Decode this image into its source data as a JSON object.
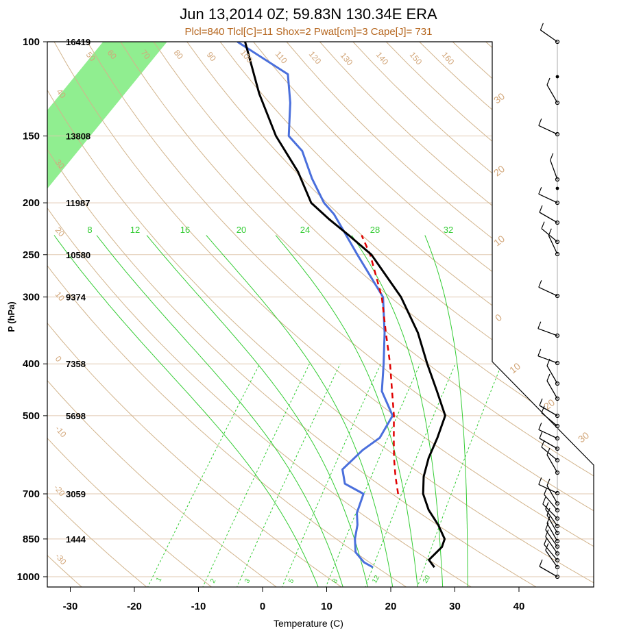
{
  "chart_data": {
    "type": "skew-t",
    "title": "Jun 13,2014 0Z; 59.83N 130.34E ERA",
    "subtitle": "Plcl=840 Tlcl[C]=11 Shox=2 Pwat[cm]=3 Cape[J]= 731",
    "xlabel": "Temperature (C)",
    "ylabel": "P (hPa)",
    "pressure_ticks": [
      "100",
      "150",
      "200",
      "250",
      "300",
      "400",
      "500",
      "700",
      "850",
      "1000"
    ],
    "heights": [
      "16419",
      "13808",
      "11987",
      "10580",
      "9374",
      "7358",
      "5698",
      "3059",
      "1444"
    ],
    "temperature_ticks": [
      "-30",
      "-20",
      "-10",
      "0",
      "10",
      "20",
      "30",
      "40"
    ],
    "xlim": [
      -34,
      52
    ],
    "ylim": [
      1050,
      100
    ],
    "temperature_profile": {
      "name": "Temperature",
      "color": "#000000",
      "points": [
        {
          "p": 960,
          "t": 25.6
        },
        {
          "p": 930,
          "t": 23.8
        },
        {
          "p": 880,
          "t": 24.2
        },
        {
          "p": 850,
          "t": 23.6
        },
        {
          "p": 800,
          "t": 20.8
        },
        {
          "p": 750,
          "t": 17.4
        },
        {
          "p": 700,
          "t": 14.5
        },
        {
          "p": 650,
          "t": 12.4
        },
        {
          "p": 600,
          "t": 10.8
        },
        {
          "p": 550,
          "t": 9.6
        },
        {
          "p": 500,
          "t": 8.0
        },
        {
          "p": 450,
          "t": 3.6
        },
        {
          "p": 400,
          "t": -1.4
        },
        {
          "p": 350,
          "t": -6.8
        },
        {
          "p": 300,
          "t": -14.0
        },
        {
          "p": 250,
          "t": -24.0
        },
        {
          "p": 230,
          "t": -30.0
        },
        {
          "p": 215,
          "t": -35.0
        },
        {
          "p": 200,
          "t": -40.0
        },
        {
          "p": 175,
          "t": -46.0
        },
        {
          "p": 150,
          "t": -54.0
        },
        {
          "p": 125,
          "t": -62.0
        },
        {
          "p": 100,
          "t": -70.8
        }
      ]
    },
    "dewpoint_profile": {
      "name": "Dewpoint",
      "color": "#4a6fdc",
      "points": [
        {
          "p": 960,
          "t": 16.0
        },
        {
          "p": 940,
          "t": 14.0
        },
        {
          "p": 900,
          "t": 11.4
        },
        {
          "p": 850,
          "t": 9.6
        },
        {
          "p": 800,
          "t": 8.2
        },
        {
          "p": 760,
          "t": 6.6
        },
        {
          "p": 700,
          "t": 5.2
        },
        {
          "p": 670,
          "t": 1.0
        },
        {
          "p": 630,
          "t": -1.2
        },
        {
          "p": 580,
          "t": -0.5
        },
        {
          "p": 550,
          "t": 0.6
        },
        {
          "p": 500,
          "t": -0.2
        },
        {
          "p": 450,
          "t": -5.0
        },
        {
          "p": 400,
          "t": -8.2
        },
        {
          "p": 350,
          "t": -12.0
        },
        {
          "p": 300,
          "t": -16.8
        },
        {
          "p": 250,
          "t": -26.2
        },
        {
          "p": 230,
          "t": -30.4
        },
        {
          "p": 210,
          "t": -35.0
        },
        {
          "p": 200,
          "t": -38.0
        },
        {
          "p": 180,
          "t": -43.0
        },
        {
          "p": 160,
          "t": -48.0
        },
        {
          "p": 150,
          "t": -52.0
        },
        {
          "p": 130,
          "t": -56.0
        },
        {
          "p": 115,
          "t": -60.0
        },
        {
          "p": 100,
          "t": -72.0
        }
      ]
    },
    "parcel_profile": {
      "name": "Parcel",
      "color": "#e00000",
      "points": [
        {
          "p": 700,
          "t": 10.6
        },
        {
          "p": 650,
          "t": 8.0
        },
        {
          "p": 600,
          "t": 5.4
        },
        {
          "p": 550,
          "t": 2.8
        },
        {
          "p": 500,
          "t": 0.0
        },
        {
          "p": 450,
          "t": -3.4
        },
        {
          "p": 400,
          "t": -7.2
        },
        {
          "p": 350,
          "t": -11.8
        },
        {
          "p": 300,
          "t": -17.0
        },
        {
          "p": 250,
          "t": -24.2
        },
        {
          "p": 230,
          "t": -28.0
        }
      ]
    },
    "dry_adiabat_labels": [
      "-30",
      "-20",
      "-10",
      "0",
      "10",
      "20",
      "30",
      "40",
      "50",
      "60",
      "70",
      "80",
      "90",
      "100",
      "110",
      "120",
      "130",
      "140",
      "150",
      "160"
    ],
    "moist_adiabat_labels": [
      "8",
      "12",
      "16",
      "20",
      "24",
      "28",
      "32"
    ],
    "mixing_ratio_labels": [
      "1",
      "2",
      "3",
      "5",
      "8",
      "12",
      "20"
    ],
    "isotherm_band_labels": [
      "30",
      "20",
      "10",
      "0",
      "10",
      "20",
      "30"
    ],
    "wind_profile": "barbs at right margin from 1000 to 100 hPa",
    "colors": {
      "isotherm_band": "#90ee90",
      "dry_adiabat": "#d2b48c",
      "moist_adiabat": "#33cc33",
      "label_brown": "#b5651d"
    }
  }
}
